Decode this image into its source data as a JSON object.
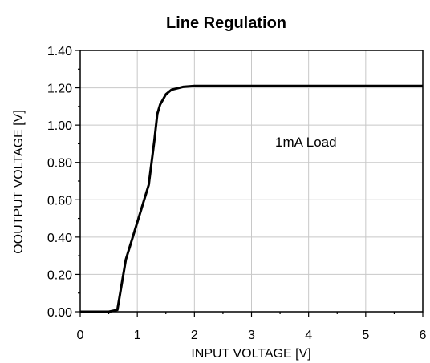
{
  "chart_data": {
    "type": "line",
    "title": "Line Regulation",
    "xlabel": "INPUT VOLTAGE [V]",
    "ylabel": "OOUTPUT VOLTAGE [V]",
    "xlim": [
      0,
      6
    ],
    "ylim": [
      0,
      1.4
    ],
    "x_ticks": [
      "0",
      "1",
      "2",
      "3",
      "4",
      "5",
      "6"
    ],
    "y_ticks": [
      "0.00",
      "0.20",
      "0.40",
      "0.60",
      "0.80",
      "1.00",
      "1.20",
      "1.40"
    ],
    "grid": true,
    "annotation": "1mA Load",
    "series": [
      {
        "x": [
          0,
          0.5,
          0.65,
          0.8,
          1.0,
          1.2,
          1.3,
          1.35,
          1.4,
          1.5,
          1.6,
          1.8,
          2.0,
          3.0,
          4.0,
          5.0,
          6.0
        ],
        "y": [
          0,
          0,
          0.01,
          0.28,
          0.48,
          0.68,
          0.92,
          1.06,
          1.11,
          1.165,
          1.19,
          1.205,
          1.21,
          1.21,
          1.21,
          1.21,
          1.21
        ],
        "color": "#000000"
      }
    ]
  }
}
